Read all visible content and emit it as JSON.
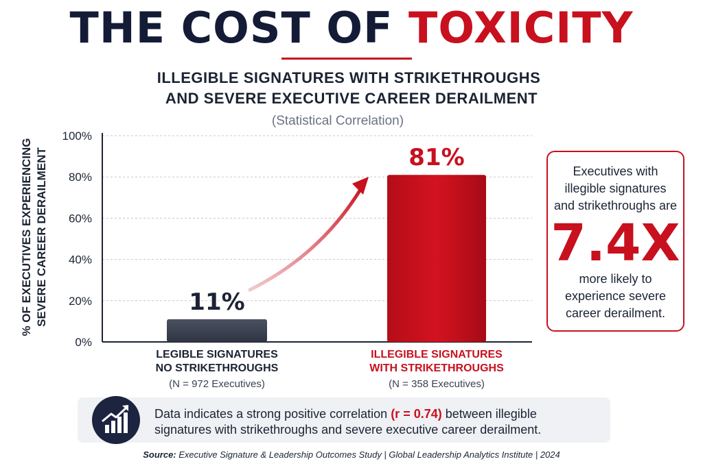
{
  "header": {
    "title_main": "THE COST OF",
    "title_accent": "TOXICITY",
    "subtitle_line1": "ILLEGIBLE SIGNATURES WITH STRIKETHROUGHS",
    "subtitle_line2": "AND SEVERE EXECUTIVE CAREER DERAILMENT",
    "note": "(Statistical Correlation)"
  },
  "colors": {
    "navy": "#141b36",
    "accent_red": "#c8101e",
    "bar_gray": "#3b4250",
    "gridline": "#c8c8c8"
  },
  "chart_data": {
    "type": "bar",
    "ylabel_line1": "% OF EXECUTIVES EXPERIENCING",
    "ylabel_line2": "SEVERE CAREER DERAILMENT",
    "ylim": [
      0,
      100
    ],
    "yticks": [
      "0%",
      "20%",
      "40%",
      "60%",
      "80%",
      "100%"
    ],
    "grid": true,
    "categories": [
      {
        "line1": "LEGIBLE SIGNATURES",
        "line2": "NO STRIKETHROUGHS",
        "sample": "(N = 972 Executives)"
      },
      {
        "line1": "ILLEGIBLE SIGNATURES",
        "line2": "WITH STRIKETHROUGHS",
        "sample": "(N = 358 Executives)"
      }
    ],
    "values": [
      11,
      81
    ],
    "data_labels": [
      "11%",
      "81%"
    ]
  },
  "callout": {
    "top_text": [
      "Executives with",
      "illegible signatures",
      "and strikethroughs are"
    ],
    "multiplier": "7.4X",
    "bottom_text": [
      "more likely to",
      "experience severe",
      "career derailment."
    ]
  },
  "info": {
    "icon": "growth-chart-icon",
    "text_before": "Data indicates a strong positive correlation ",
    "text_highlight": "(r = 0.74)",
    "text_after": " between illegible signatures with strikethroughs and severe executive career derailment."
  },
  "source": {
    "label": "Source:",
    "text": "Executive Signature & Leadership Outcomes Study  |  Global Leadership Analytics Institute  |  2024"
  }
}
